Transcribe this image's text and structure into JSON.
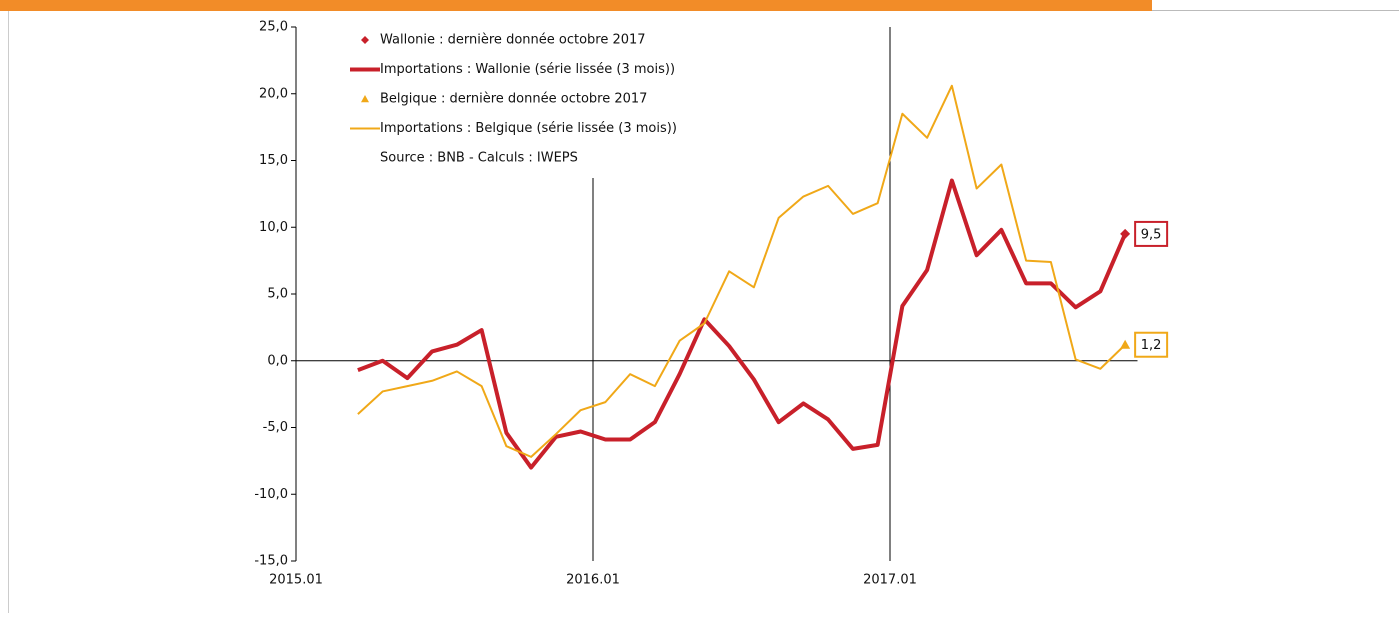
{
  "chart_data": {
    "type": "line",
    "source": "Source : BNB - Calculs : IWEPS",
    "categories": [
      "2015.01",
      null,
      null,
      null,
      null,
      null,
      null,
      null,
      null,
      null,
      null,
      null,
      "2016.01",
      null,
      null,
      null,
      null,
      null,
      null,
      null,
      null,
      null,
      null,
      null,
      "2017.01",
      null,
      null,
      null,
      null,
      null,
      null,
      null,
      null,
      null
    ],
    "ylim": [
      -15,
      25
    ],
    "yticks": [
      {
        "value": -15,
        "label": "-15,0"
      },
      {
        "value": -10,
        "label": "-10,0"
      },
      {
        "value": -5,
        "label": "-5,0"
      },
      {
        "value": 0,
        "label": "0,0"
      },
      {
        "value": 5,
        "label": "5,0"
      },
      {
        "value": 10,
        "label": "10,0"
      },
      {
        "value": 15,
        "label": "15,0"
      },
      {
        "value": 20,
        "label": "20,0"
      },
      {
        "value": 25,
        "label": "25,0"
      }
    ],
    "series": [
      {
        "name": "Wallonie : dernière donnée octobre 2017",
        "color": "#c8202a",
        "marker": "diamond",
        "values": [
          null,
          null,
          null,
          null,
          null,
          null,
          null,
          null,
          null,
          null,
          null,
          null,
          null,
          null,
          null,
          null,
          null,
          null,
          null,
          null,
          null,
          null,
          null,
          null,
          null,
          null,
          null,
          null,
          null,
          null,
          null,
          null,
          null,
          9.5
        ],
        "value_labels": [
          null,
          null,
          null,
          null,
          null,
          null,
          null,
          null,
          null,
          null,
          null,
          null,
          null,
          null,
          null,
          null,
          null,
          null,
          null,
          null,
          null,
          null,
          null,
          null,
          null,
          null,
          null,
          null,
          null,
          null,
          null,
          null,
          null,
          "9,5"
        ]
      },
      {
        "name": "Importations : Wallonie (série lissée (3 mois))",
        "color": "#c8202a",
        "marker": "line",
        "width": 4,
        "values": [
          null,
          null,
          -0.7,
          0.0,
          -1.3,
          0.7,
          1.2,
          2.3,
          -5.4,
          -8.0,
          -5.7,
          -5.3,
          -5.9,
          -5.9,
          -4.6,
          -1.0,
          3.1,
          1.1,
          -1.4,
          -4.6,
          -3.2,
          -4.4,
          -6.6,
          -6.3,
          4.1,
          6.8,
          13.5,
          7.9,
          9.8,
          5.8,
          5.8,
          4.0,
          5.2,
          9.5
        ]
      },
      {
        "name": "Belgique : dernière donnée octobre 2017",
        "color": "#f0a818",
        "marker": "triangle",
        "values": [
          null,
          null,
          null,
          null,
          null,
          null,
          null,
          null,
          null,
          null,
          null,
          null,
          null,
          null,
          null,
          null,
          null,
          null,
          null,
          null,
          null,
          null,
          null,
          null,
          null,
          null,
          null,
          null,
          null,
          null,
          null,
          null,
          null,
          1.2
        ],
        "value_labels": [
          null,
          null,
          null,
          null,
          null,
          null,
          null,
          null,
          null,
          null,
          null,
          null,
          null,
          null,
          null,
          null,
          null,
          null,
          null,
          null,
          null,
          null,
          null,
          null,
          null,
          null,
          null,
          null,
          null,
          null,
          null,
          null,
          null,
          "1,2"
        ]
      },
      {
        "name": "Importations : Belgique (série lissée (3 mois))",
        "color": "#f0a818",
        "marker": "line",
        "width": 2,
        "values": [
          null,
          null,
          -4.0,
          -2.3,
          -1.9,
          -1.5,
          -0.8,
          -1.9,
          -6.4,
          -7.2,
          -5.5,
          -3.7,
          -3.1,
          -1.0,
          -1.9,
          1.5,
          2.8,
          6.7,
          5.5,
          10.7,
          12.3,
          13.1,
          11.0,
          11.8,
          18.5,
          16.7,
          20.6,
          12.9,
          14.7,
          7.5,
          7.4,
          0.1,
          -0.6,
          1.2
        ]
      }
    ]
  }
}
